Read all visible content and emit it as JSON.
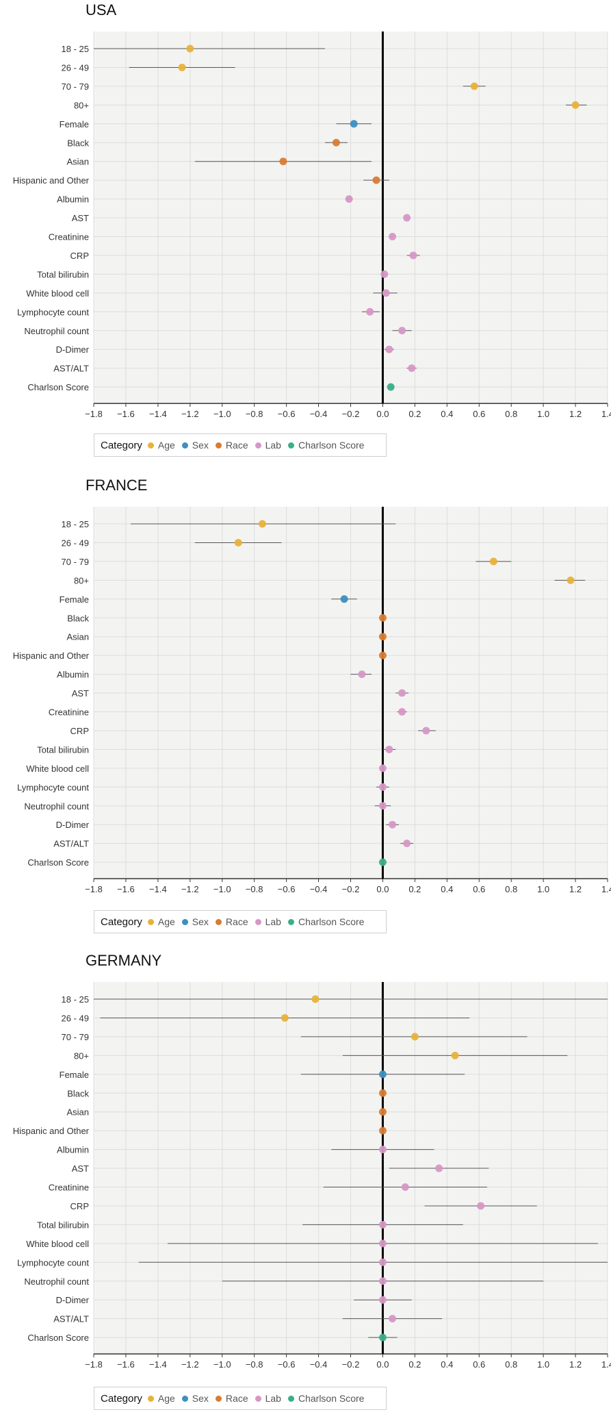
{
  "chart_data": [
    {
      "type": "scatter",
      "title": "USA",
      "xlim": [
        -1.8,
        1.4
      ],
      "x_ticks": [
        -1.8,
        -1.6,
        -1.4,
        -1.2,
        -1.0,
        -0.8,
        -0.6,
        -0.4,
        -0.2,
        0.0,
        0.2,
        0.4,
        0.6,
        0.8,
        1.0,
        1.2,
        1.4
      ],
      "x_tick_labels": [
        "−1.8",
        "−1.6",
        "−1.4",
        "−1.2",
        "−1.0",
        "−0.8",
        "−0.6",
        "−0.4",
        "−0.2",
        "0.0",
        "0.2",
        "0.4",
        "0.6",
        "0.8",
        "1.0",
        "1.2",
        "1.4"
      ],
      "grid": true,
      "legend_position": "bottom-left",
      "points": [
        {
          "label": "18 - 25",
          "category": "Age",
          "estimate": -1.2,
          "ci": [
            -1.8,
            -0.36
          ]
        },
        {
          "label": "26 - 49",
          "category": "Age",
          "estimate": -1.25,
          "ci": [
            -1.58,
            -0.92
          ]
        },
        {
          "label": "70 - 79",
          "category": "Age",
          "estimate": 0.57,
          "ci": [
            0.5,
            0.64
          ]
        },
        {
          "label": "80+",
          "category": "Age",
          "estimate": 1.2,
          "ci": [
            1.14,
            1.27
          ]
        },
        {
          "label": "Female",
          "category": "Sex",
          "estimate": -0.18,
          "ci": [
            -0.29,
            -0.07
          ]
        },
        {
          "label": "Black",
          "category": "Race",
          "estimate": -0.29,
          "ci": [
            -0.36,
            -0.22
          ]
        },
        {
          "label": "Asian",
          "category": "Race",
          "estimate": -0.62,
          "ci": [
            -1.17,
            -0.07
          ]
        },
        {
          "label": "Hispanic and Other",
          "category": "Race",
          "estimate": -0.04,
          "ci": [
            -0.12,
            0.04
          ]
        },
        {
          "label": "Albumin",
          "category": "Lab",
          "estimate": -0.21,
          "ci": [
            -0.23,
            -0.19
          ]
        },
        {
          "label": "AST",
          "category": "Lab",
          "estimate": 0.15,
          "ci": [
            0.13,
            0.17
          ]
        },
        {
          "label": "Creatinine",
          "category": "Lab",
          "estimate": 0.06,
          "ci": [
            0.04,
            0.08
          ]
        },
        {
          "label": "CRP",
          "category": "Lab",
          "estimate": 0.19,
          "ci": [
            0.15,
            0.23
          ]
        },
        {
          "label": "Total bilirubin",
          "category": "Lab",
          "estimate": 0.01,
          "ci": [
            -0.01,
            0.03
          ]
        },
        {
          "label": "White blood cell",
          "category": "Lab",
          "estimate": 0.02,
          "ci": [
            -0.06,
            0.09
          ]
        },
        {
          "label": "Lymphocyte count",
          "category": "Lab",
          "estimate": -0.08,
          "ci": [
            -0.13,
            -0.02
          ]
        },
        {
          "label": "Neutrophil count",
          "category": "Lab",
          "estimate": 0.12,
          "ci": [
            0.06,
            0.18
          ]
        },
        {
          "label": "D-Dimer",
          "category": "Lab",
          "estimate": 0.04,
          "ci": [
            0.01,
            0.07
          ]
        },
        {
          "label": "AST/ALT",
          "category": "Lab",
          "estimate": 0.18,
          "ci": [
            0.15,
            0.21
          ]
        },
        {
          "label": "Charlson Score",
          "category": "Charlson Score",
          "estimate": 0.05,
          "ci": [
            0.04,
            0.06
          ]
        }
      ]
    },
    {
      "type": "scatter",
      "title": "FRANCE",
      "xlim": [
        -1.8,
        1.4
      ],
      "x_ticks": [
        -1.8,
        -1.6,
        -1.4,
        -1.2,
        -1.0,
        -0.8,
        -0.6,
        -0.4,
        -0.2,
        0.0,
        0.2,
        0.4,
        0.6,
        0.8,
        1.0,
        1.2,
        1.4
      ],
      "x_tick_labels": [
        "−1.8",
        "−1.6",
        "−1.4",
        "−1.2",
        "−1.0",
        "−0.8",
        "−0.6",
        "−0.4",
        "−0.2",
        "0.0",
        "0.2",
        "0.4",
        "0.6",
        "0.8",
        "1.0",
        "1.2",
        "1.4"
      ],
      "grid": true,
      "legend_position": "bottom-left",
      "points": [
        {
          "label": "18 - 25",
          "category": "Age",
          "estimate": -0.75,
          "ci": [
            -1.57,
            0.08
          ]
        },
        {
          "label": "26 - 49",
          "category": "Age",
          "estimate": -0.9,
          "ci": [
            -1.17,
            -0.63
          ]
        },
        {
          "label": "70 - 79",
          "category": "Age",
          "estimate": 0.69,
          "ci": [
            0.58,
            0.8
          ]
        },
        {
          "label": "80+",
          "category": "Age",
          "estimate": 1.17,
          "ci": [
            1.07,
            1.26
          ]
        },
        {
          "label": "Female",
          "category": "Sex",
          "estimate": -0.24,
          "ci": [
            -0.32,
            -0.16
          ]
        },
        {
          "label": "Black",
          "category": "Race",
          "estimate": 0.0,
          "ci": [
            0.0,
            0.0
          ]
        },
        {
          "label": "Asian",
          "category": "Race",
          "estimate": 0.0,
          "ci": [
            0.0,
            0.0
          ]
        },
        {
          "label": "Hispanic and Other",
          "category": "Race",
          "estimate": 0.0,
          "ci": [
            0.0,
            0.0
          ]
        },
        {
          "label": "Albumin",
          "category": "Lab",
          "estimate": -0.13,
          "ci": [
            -0.2,
            -0.07
          ]
        },
        {
          "label": "AST",
          "category": "Lab",
          "estimate": 0.12,
          "ci": [
            0.08,
            0.16
          ]
        },
        {
          "label": "Creatinine",
          "category": "Lab",
          "estimate": 0.12,
          "ci": [
            0.09,
            0.15
          ]
        },
        {
          "label": "CRP",
          "category": "Lab",
          "estimate": 0.27,
          "ci": [
            0.22,
            0.33
          ]
        },
        {
          "label": "Total bilirubin",
          "category": "Lab",
          "estimate": 0.04,
          "ci": [
            0.0,
            0.08
          ]
        },
        {
          "label": "White blood cell",
          "category": "Lab",
          "estimate": 0.0,
          "ci": [
            -0.02,
            0.02
          ]
        },
        {
          "label": "Lymphocyte count",
          "category": "Lab",
          "estimate": 0.0,
          "ci": [
            -0.04,
            0.04
          ]
        },
        {
          "label": "Neutrophil count",
          "category": "Lab",
          "estimate": 0.0,
          "ci": [
            -0.05,
            0.05
          ]
        },
        {
          "label": "D-Dimer",
          "category": "Lab",
          "estimate": 0.06,
          "ci": [
            0.02,
            0.1
          ]
        },
        {
          "label": "AST/ALT",
          "category": "Lab",
          "estimate": 0.15,
          "ci": [
            0.11,
            0.19
          ]
        },
        {
          "label": "Charlson Score",
          "category": "Charlson Score",
          "estimate": 0.0,
          "ci": [
            -0.01,
            0.01
          ]
        }
      ]
    },
    {
      "type": "scatter",
      "title": "GERMANY",
      "xlim": [
        -1.8,
        1.4
      ],
      "x_ticks": [
        -1.8,
        -1.6,
        -1.4,
        -1.2,
        -1.0,
        -0.8,
        -0.6,
        -0.4,
        -0.2,
        0.0,
        0.2,
        0.4,
        0.6,
        0.8,
        1.0,
        1.2,
        1.4
      ],
      "x_tick_labels": [
        "−1.8",
        "−1.6",
        "−1.4",
        "−1.2",
        "−1.0",
        "−0.8",
        "−0.6",
        "−0.4",
        "−0.2",
        "0.0",
        "0.2",
        "0.4",
        "0.6",
        "0.8",
        "1.0",
        "1.2",
        "1.4"
      ],
      "grid": true,
      "legend_position": "bottom-left",
      "points": [
        {
          "label": "18 - 25",
          "category": "Age",
          "estimate": -0.42,
          "ci": [
            -1.8,
            1.4
          ]
        },
        {
          "label": "26 - 49",
          "category": "Age",
          "estimate": -0.61,
          "ci": [
            -1.76,
            0.54
          ]
        },
        {
          "label": "70 - 79",
          "category": "Age",
          "estimate": 0.2,
          "ci": [
            -0.51,
            0.9
          ]
        },
        {
          "label": "80+",
          "category": "Age",
          "estimate": 0.45,
          "ci": [
            -0.25,
            1.15
          ]
        },
        {
          "label": "Female",
          "category": "Sex",
          "estimate": 0.0,
          "ci": [
            -0.51,
            0.51
          ]
        },
        {
          "label": "Black",
          "category": "Race",
          "estimate": 0.0,
          "ci": [
            0.0,
            0.0
          ]
        },
        {
          "label": "Asian",
          "category": "Race",
          "estimate": 0.0,
          "ci": [
            0.0,
            0.0
          ]
        },
        {
          "label": "Hispanic and Other",
          "category": "Race",
          "estimate": 0.0,
          "ci": [
            0.0,
            0.0
          ]
        },
        {
          "label": "Albumin",
          "category": "Lab",
          "estimate": 0.0,
          "ci": [
            -0.32,
            0.32
          ]
        },
        {
          "label": "AST",
          "category": "Lab",
          "estimate": 0.35,
          "ci": [
            0.04,
            0.66
          ]
        },
        {
          "label": "Creatinine",
          "category": "Lab",
          "estimate": 0.14,
          "ci": [
            -0.37,
            0.65
          ]
        },
        {
          "label": "CRP",
          "category": "Lab",
          "estimate": 0.61,
          "ci": [
            0.26,
            0.96
          ]
        },
        {
          "label": "Total bilirubin",
          "category": "Lab",
          "estimate": 0.0,
          "ci": [
            -0.5,
            0.5
          ]
        },
        {
          "label": "White blood cell",
          "category": "Lab",
          "estimate": 0.0,
          "ci": [
            -1.34,
            1.34
          ]
        },
        {
          "label": "Lymphocyte count",
          "category": "Lab",
          "estimate": 0.0,
          "ci": [
            -1.52,
            1.4
          ]
        },
        {
          "label": "Neutrophil count",
          "category": "Lab",
          "estimate": 0.0,
          "ci": [
            -1.0,
            1.0
          ]
        },
        {
          "label": "D-Dimer",
          "category": "Lab",
          "estimate": 0.0,
          "ci": [
            -0.18,
            0.18
          ]
        },
        {
          "label": "AST/ALT",
          "category": "Lab",
          "estimate": 0.06,
          "ci": [
            -0.25,
            0.37
          ]
        },
        {
          "label": "Charlson Score",
          "category": "Charlson Score",
          "estimate": 0.0,
          "ci": [
            -0.09,
            0.09
          ]
        }
      ]
    }
  ],
  "legend": {
    "title": "Category",
    "items": [
      {
        "label": "Age",
        "color": "#e8b23a"
      },
      {
        "label": "Sex",
        "color": "#3d8fc0"
      },
      {
        "label": "Race",
        "color": "#d97c31"
      },
      {
        "label": "Lab",
        "color": "#d797c5"
      },
      {
        "label": "Charlson Score",
        "color": "#3aae8a"
      }
    ]
  },
  "colors": {
    "plot_background": "#f3f4f2",
    "grid": "#dcdcdc",
    "zero_line": "#000000",
    "ci_line": "#555555"
  }
}
